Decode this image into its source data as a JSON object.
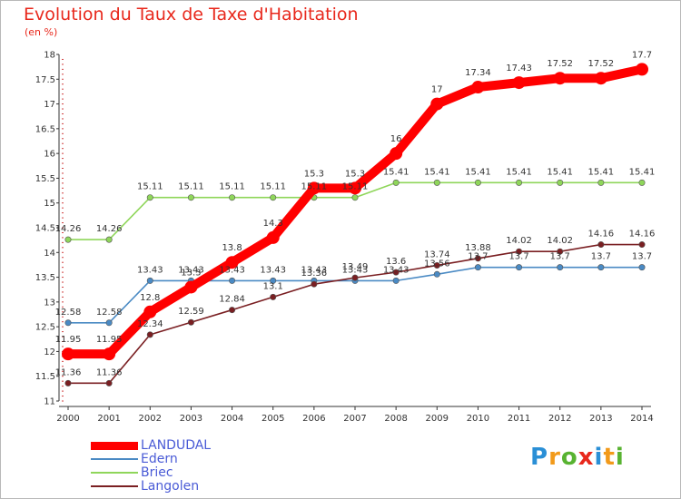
{
  "title": "Evolution du Taux de Taxe d'Habitation",
  "unit_label": "(en %)",
  "logo_letters": [
    {
      "char": "P",
      "color": "#2a8fd6"
    },
    {
      "char": "r",
      "color": "#f29a1a"
    },
    {
      "char": "o",
      "color": "#58b331"
    },
    {
      "char": "x",
      "color": "#e8281c"
    },
    {
      "char": "i",
      "color": "#2a8fd6"
    },
    {
      "char": "t",
      "color": "#f29a1a"
    },
    {
      "char": "i",
      "color": "#58b331"
    }
  ],
  "chart_data": {
    "type": "line",
    "title": "Evolution du Taux de Taxe d'Habitation",
    "ylabel": "(en %)",
    "x": [
      "2000",
      "2001",
      "2002",
      "2003",
      "2004",
      "2005",
      "2006",
      "2007",
      "2008",
      "2009",
      "2010",
      "2011",
      "2012",
      "2013",
      "2014"
    ],
    "yticks": [
      "11",
      "11.5",
      "12",
      "12.5",
      "13",
      "13.5",
      "14",
      "14.5",
      "15",
      "15.5",
      "16",
      "16.5",
      "17",
      "17.5",
      "18"
    ],
    "ylim": [
      11,
      18
    ],
    "grid": false,
    "legend_position": "bottom-left",
    "series": [
      {
        "name": "LANDUDAL",
        "color": "#ff0000",
        "values": [
          11.95,
          11.95,
          12.8,
          13.3,
          13.8,
          14.3,
          15.3,
          15.3,
          16.0,
          17.0,
          17.34,
          17.43,
          17.52,
          17.52,
          17.7
        ],
        "labels": [
          "11.95",
          "11.95",
          "12.8",
          "13.3",
          "13.8",
          "14.3",
          "15.3",
          "15.3",
          "16",
          "17",
          "17.34",
          "17.43",
          "17.52",
          "17.52",
          "17.7"
        ]
      },
      {
        "name": "Edern",
        "color": "#4a8ac4",
        "values": [
          12.58,
          12.58,
          13.43,
          13.43,
          13.43,
          13.43,
          13.43,
          13.43,
          13.43,
          13.56,
          13.7,
          13.7,
          13.7,
          13.7,
          13.7
        ],
        "labels": [
          "12.58",
          "12.58",
          "13.43",
          "13.43",
          "13.43",
          "13.43",
          "13.43",
          "13.43",
          "13.43",
          "13.56",
          "13.7",
          "13.7",
          "13.7",
          "13.7",
          "13.7"
        ]
      },
      {
        "name": "Briec",
        "color": "#8fd65a",
        "values": [
          14.26,
          14.26,
          15.11,
          15.11,
          15.11,
          15.11,
          15.11,
          15.11,
          15.41,
          15.41,
          15.41,
          15.41,
          15.41,
          15.41,
          15.41
        ],
        "labels": [
          "14.26",
          "14.26",
          "15.11",
          "15.11",
          "15.11",
          "15.11",
          "15.11",
          "15.11",
          "15.41",
          "15.41",
          "15.41",
          "15.41",
          "15.41",
          "15.41",
          "15.41"
        ]
      },
      {
        "name": "Langolen",
        "color": "#7a1f22",
        "values": [
          11.36,
          11.36,
          12.34,
          12.59,
          12.84,
          13.1,
          13.36,
          13.49,
          13.6,
          13.74,
          13.88,
          14.02,
          14.02,
          14.16,
          14.16
        ],
        "labels": [
          "11.36",
          "11.36",
          "12.34",
          "12.59",
          "12.84",
          "13.1",
          "13.36",
          "13.49",
          "13.6",
          "13.74",
          "13.88",
          "14.02",
          "14.02",
          "14.16",
          "14.16"
        ]
      }
    ]
  }
}
